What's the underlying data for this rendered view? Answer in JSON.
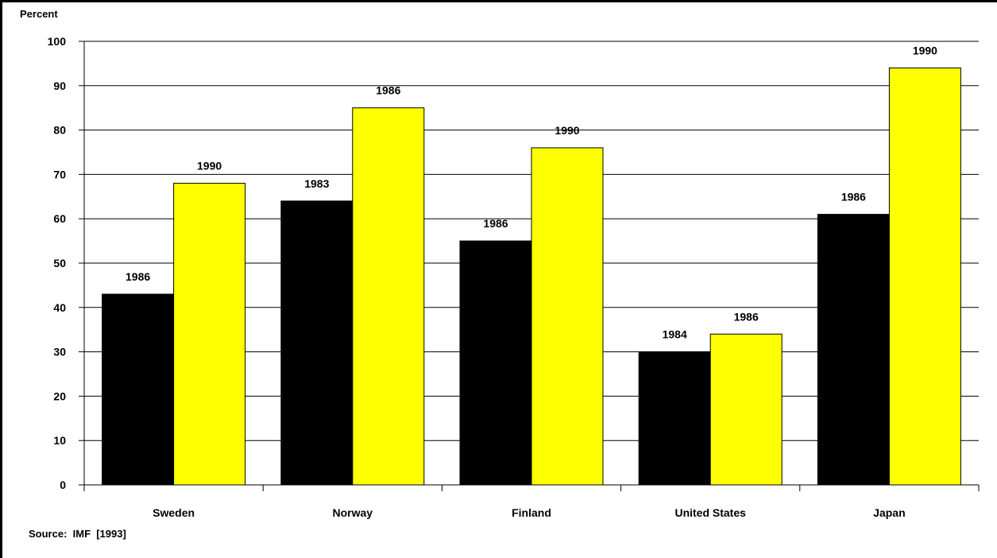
{
  "chart_data": {
    "type": "bar",
    "ylabel": "Percent",
    "ylim": [
      0,
      100
    ],
    "yticks": [
      0,
      10,
      20,
      30,
      40,
      50,
      60,
      70,
      80,
      90,
      100
    ],
    "grid": true,
    "categories": [
      "Sweden",
      "Norway",
      "Finland",
      "United States",
      "Japan"
    ],
    "series": [
      {
        "color": "#000000",
        "values": [
          43,
          64,
          55,
          30,
          61
        ],
        "labels": [
          "1986",
          "1983",
          "1986",
          "1984",
          "1986"
        ]
      },
      {
        "color": "#ffff00",
        "values": [
          68,
          85,
          76,
          34,
          94
        ],
        "labels": [
          "1990",
          "1986",
          "1990",
          "1986",
          "1990"
        ]
      }
    ]
  },
  "source_note": "Source:  IMF  [1993]"
}
